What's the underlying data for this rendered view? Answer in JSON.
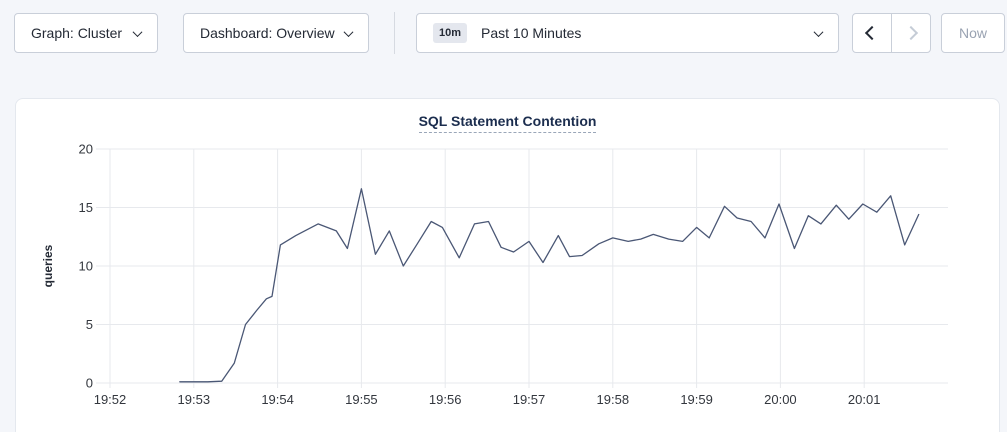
{
  "toolbar": {
    "graph_dropdown_label": "Graph: Cluster",
    "dashboard_dropdown_label": "Dashboard: Overview",
    "time_range_badge": "10m",
    "time_range_label": "Past 10 Minutes",
    "now_button_label": "Now",
    "icons": {
      "graph_dropdown": "chevron-down",
      "dashboard_dropdown": "chevron-down",
      "time_range_picker": "chevron-down",
      "time_back": "chevron-left",
      "time_forward": "chevron-right"
    },
    "time_forward_enabled": false,
    "now_enabled": false
  },
  "colors": {
    "page_bg": "#f4f6fa",
    "card_bg": "#ffffff",
    "card_border": "#e4e8ee",
    "button_border": "#c9cfd9",
    "text": "#242a35",
    "title": "#1b2d4e",
    "disabled_text": "#9aa3b2",
    "grid": "#e7e9ed",
    "line": "#4a5775",
    "tick_label": "#33373e"
  },
  "chart_data": {
    "type": "line",
    "title": "SQL Statement Contention",
    "xlabel": "",
    "ylabel": "queries",
    "ylim": [
      0,
      20
    ],
    "yticks": [
      0,
      5,
      10,
      15,
      20
    ],
    "x_domain_seconds": [
      0,
      600
    ],
    "x_domain_start_time": "19:52",
    "xtick_seconds": [
      0,
      60,
      120,
      180,
      240,
      300,
      360,
      420,
      480,
      540
    ],
    "xtick_labels": [
      "19:52",
      "19:53",
      "19:54",
      "19:55",
      "19:56",
      "19:57",
      "19:58",
      "19:59",
      "20:00",
      "20:01"
    ],
    "grid": true,
    "legend": false,
    "series": [
      {
        "name": "SQL Statement Contention",
        "color": "#4a5775",
        "t_seconds_from_19_52": [
          50,
          60,
          70,
          80,
          89,
          97,
          105,
          112,
          116,
          122,
          133,
          149,
          162,
          170,
          180,
          190,
          200,
          210,
          220,
          230,
          238,
          250,
          261,
          271,
          280,
          289,
          300,
          310,
          321,
          329,
          338,
          350,
          360,
          371,
          380,
          389,
          400,
          410,
          420,
          429,
          440,
          449,
          459,
          469,
          479,
          490,
          500,
          509,
          520,
          529,
          539,
          549,
          559,
          569,
          579
        ],
        "values": [
          0.1,
          0.1,
          0.1,
          0.15,
          1.7,
          5.0,
          6.2,
          7.2,
          7.4,
          11.8,
          12.6,
          13.6,
          13.0,
          11.5,
          16.6,
          11.0,
          13.0,
          10.0,
          11.9,
          13.8,
          13.3,
          10.7,
          13.6,
          13.8,
          11.6,
          11.2,
          12.1,
          10.3,
          12.6,
          10.8,
          10.9,
          11.9,
          12.4,
          12.1,
          12.3,
          12.7,
          12.3,
          12.1,
          13.3,
          12.4,
          15.1,
          14.1,
          13.8,
          12.4,
          15.3,
          11.5,
          14.3,
          13.6,
          15.2,
          14.0,
          15.3,
          14.6,
          16.0,
          11.8,
          14.4
        ]
      }
    ]
  }
}
